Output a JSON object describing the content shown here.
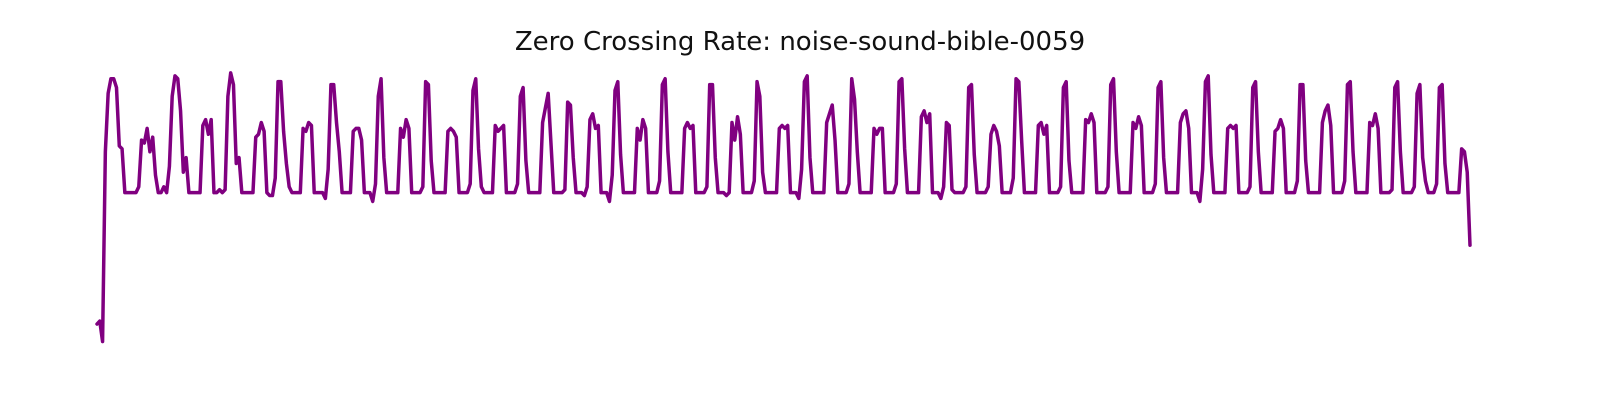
{
  "chart_data": {
    "type": "line",
    "title": "Zero Crossing Rate: noise-sound-bible-0059",
    "xlabel": "",
    "ylabel": "",
    "axes_visible": false,
    "grid": false,
    "ylim": [
      0,
      1
    ],
    "line_color": "#800080",
    "series": [
      {
        "values": [
          0.13,
          0.14,
          0.07,
          0.72,
          0.92,
          0.97,
          0.97,
          0.94,
          0.74,
          0.73,
          0.58,
          0.58,
          0.58,
          0.58,
          0.58,
          0.6,
          0.76,
          0.75,
          0.8,
          0.72,
          0.77,
          0.64,
          0.58,
          0.58,
          0.6,
          0.58,
          0.67,
          0.91,
          0.98,
          0.97,
          0.86,
          0.65,
          0.7,
          0.58,
          0.58,
          0.58,
          0.58,
          0.58,
          0.81,
          0.83,
          0.78,
          0.83,
          0.58,
          0.58,
          0.59,
          0.58,
          0.59,
          0.91,
          0.99,
          0.95,
          0.68,
          0.7,
          0.58,
          0.58,
          0.58,
          0.58,
          0.58,
          0.77,
          0.78,
          0.82,
          0.79,
          0.58,
          0.57,
          0.57,
          0.63,
          0.96,
          0.96,
          0.79,
          0.68,
          0.6,
          0.58,
          0.58,
          0.58,
          0.58,
          0.8,
          0.79,
          0.82,
          0.81,
          0.58,
          0.58,
          0.58,
          0.58,
          0.56,
          0.66,
          0.95,
          0.95,
          0.82,
          0.72,
          0.58,
          0.58,
          0.58,
          0.58,
          0.79,
          0.8,
          0.8,
          0.76,
          0.58,
          0.58,
          0.58,
          0.55,
          0.61,
          0.91,
          0.97,
          0.7,
          0.58,
          0.58,
          0.58,
          0.58,
          0.58,
          0.8,
          0.77,
          0.83,
          0.8,
          0.58,
          0.58,
          0.58,
          0.58,
          0.6,
          0.96,
          0.95,
          0.69,
          0.58,
          0.58,
          0.58,
          0.58,
          0.58,
          0.79,
          0.8,
          0.79,
          0.77,
          0.58,
          0.58,
          0.58,
          0.58,
          0.61,
          0.93,
          0.97,
          0.73,
          0.6,
          0.58,
          0.58,
          0.58,
          0.58,
          0.81,
          0.79,
          0.8,
          0.81,
          0.58,
          0.58,
          0.58,
          0.58,
          0.61,
          0.91,
          0.94,
          0.69,
          0.58,
          0.58,
          0.58,
          0.58,
          0.58,
          0.82,
          0.87,
          0.92,
          0.75,
          0.58,
          0.58,
          0.58,
          0.58,
          0.59,
          0.89,
          0.88,
          0.7,
          0.58,
          0.58,
          0.58,
          0.57,
          0.6,
          0.83,
          0.85,
          0.8,
          0.81,
          0.58,
          0.58,
          0.58,
          0.55,
          0.64,
          0.93,
          0.96,
          0.71,
          0.58,
          0.58,
          0.58,
          0.58,
          0.58,
          0.8,
          0.76,
          0.83,
          0.8,
          0.58,
          0.58,
          0.58,
          0.58,
          0.62,
          0.95,
          0.97,
          0.72,
          0.58,
          0.58,
          0.58,
          0.58,
          0.58,
          0.8,
          0.82,
          0.8,
          0.81,
          0.58,
          0.58,
          0.58,
          0.58,
          0.6,
          0.95,
          0.95,
          0.7,
          0.58,
          0.58,
          0.58,
          0.57,
          0.58,
          0.82,
          0.76,
          0.84,
          0.78,
          0.58,
          0.58,
          0.58,
          0.58,
          0.62,
          0.96,
          0.91,
          0.65,
          0.58,
          0.58,
          0.58,
          0.58,
          0.58,
          0.8,
          0.81,
          0.8,
          0.81,
          0.58,
          0.58,
          0.58,
          0.56,
          0.66,
          0.96,
          0.98,
          0.7,
          0.58,
          0.58,
          0.58,
          0.58,
          0.58,
          0.82,
          0.85,
          0.88,
          0.76,
          0.58,
          0.58,
          0.58,
          0.58,
          0.61,
          0.97,
          0.9,
          0.72,
          0.58,
          0.58,
          0.58,
          0.58,
          0.58,
          0.8,
          0.78,
          0.8,
          0.8,
          0.58,
          0.58,
          0.58,
          0.58,
          0.61,
          0.96,
          0.97,
          0.73,
          0.58,
          0.58,
          0.58,
          0.58,
          0.58,
          0.84,
          0.86,
          0.82,
          0.85,
          0.58,
          0.58,
          0.58,
          0.56,
          0.6,
          0.82,
          0.81,
          0.59,
          0.58,
          0.58,
          0.58,
          0.58,
          0.6,
          0.94,
          0.95,
          0.71,
          0.58,
          0.58,
          0.58,
          0.58,
          0.6,
          0.78,
          0.81,
          0.79,
          0.74,
          0.58,
          0.58,
          0.58,
          0.58,
          0.63,
          0.97,
          0.96,
          0.76,
          0.58,
          0.58,
          0.58,
          0.58,
          0.58,
          0.81,
          0.82,
          0.78,
          0.81,
          0.58,
          0.58,
          0.58,
          0.58,
          0.6,
          0.94,
          0.96,
          0.69,
          0.58,
          0.58,
          0.58,
          0.58,
          0.58,
          0.83,
          0.82,
          0.85,
          0.82,
          0.58,
          0.58,
          0.58,
          0.58,
          0.6,
          0.95,
          0.97,
          0.72,
          0.58,
          0.58,
          0.58,
          0.58,
          0.58,
          0.82,
          0.8,
          0.84,
          0.81,
          0.58,
          0.58,
          0.58,
          0.58,
          0.61,
          0.94,
          0.96,
          0.7,
          0.58,
          0.58,
          0.58,
          0.58,
          0.58,
          0.82,
          0.85,
          0.86,
          0.8,
          0.58,
          0.58,
          0.58,
          0.55,
          0.66,
          0.96,
          0.98,
          0.71,
          0.58,
          0.58,
          0.58,
          0.58,
          0.58,
          0.8,
          0.81,
          0.8,
          0.81,
          0.58,
          0.58,
          0.58,
          0.58,
          0.6,
          0.94,
          0.96,
          0.72,
          0.58,
          0.58,
          0.58,
          0.58,
          0.58,
          0.79,
          0.8,
          0.83,
          0.8,
          0.58,
          0.58,
          0.58,
          0.58,
          0.62,
          0.95,
          0.95,
          0.69,
          0.58,
          0.58,
          0.58,
          0.58,
          0.58,
          0.82,
          0.86,
          0.88,
          0.81,
          0.58,
          0.58,
          0.58,
          0.58,
          0.62,
          0.95,
          0.96,
          0.72,
          0.58,
          0.58,
          0.58,
          0.58,
          0.58,
          0.82,
          0.81,
          0.85,
          0.8,
          0.58,
          0.58,
          0.58,
          0.58,
          0.59,
          0.94,
          0.96,
          0.72,
          0.58,
          0.58,
          0.58,
          0.58,
          0.6,
          0.92,
          0.95,
          0.7,
          0.62,
          0.58,
          0.58,
          0.58,
          0.61,
          0.94,
          0.95,
          0.68,
          0.58,
          0.58,
          0.58,
          0.58,
          0.58,
          0.73,
          0.72,
          0.65,
          0.4
        ],
        "color": "#800080"
      }
    ]
  }
}
